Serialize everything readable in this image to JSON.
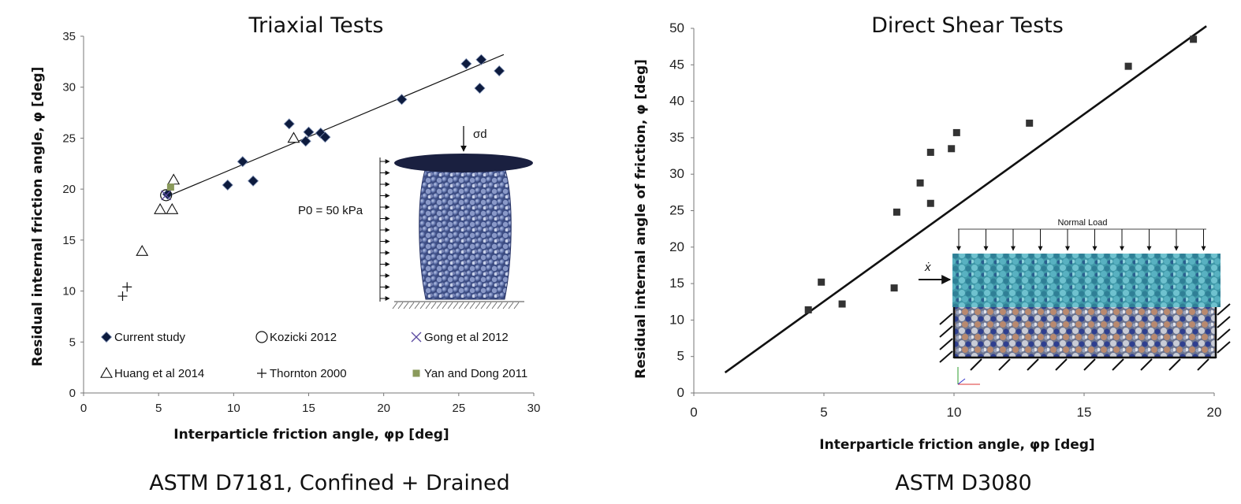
{
  "chart_data": [
    {
      "type": "scatter",
      "title": "Triaxial Tests",
      "caption": "ASTM D7181, Confined + Drained",
      "xlabel": "Interparticle friction angle, φp [deg]",
      "ylabel": "Residual internal  friction angle, φ [deg]",
      "xlim": [
        0,
        30
      ],
      "ylim": [
        0,
        35
      ],
      "xticks": [
        0,
        5,
        10,
        15,
        20,
        25,
        30
      ],
      "yticks": [
        0,
        5,
        10,
        15,
        20,
        25,
        30,
        35
      ],
      "grid": false,
      "legend_placement": "bottom",
      "annotations": {
        "sigma": "σd",
        "pressure": "P0 = 50 kPa"
      },
      "series": [
        {
          "name": "Current study",
          "marker": "diamond",
          "color": "#0d1b3e",
          "x": [
            5.6,
            9.6,
            10.6,
            11.3,
            13.7,
            14.8,
            15.0,
            15.8,
            16.1,
            21.2,
            25.5,
            26.5,
            26.4,
            27.7
          ],
          "y": [
            19.5,
            20.4,
            22.7,
            20.8,
            26.4,
            24.7,
            25.6,
            25.5,
            25.1,
            28.8,
            32.3,
            32.7,
            29.9,
            31.6
          ]
        },
        {
          "name": "Kozicki 2012",
          "marker": "circle",
          "color": "#111111",
          "x": [
            5.5
          ],
          "y": [
            19.4
          ]
        },
        {
          "name": "Gong et al 2012",
          "marker": "x",
          "color": "#5a4aa0",
          "x": [
            5.5
          ],
          "y": [
            19.4
          ]
        },
        {
          "name": "Huang et al 2014",
          "marker": "triangle",
          "color": "#111111",
          "x": [
            14.0,
            6.0,
            5.1,
            5.9,
            3.9
          ],
          "y": [
            25.0,
            20.9,
            18.0,
            18.0,
            13.9
          ]
        },
        {
          "name": "Thornton 2000",
          "marker": "plus",
          "color": "#111111",
          "x": [
            2.6,
            2.9
          ],
          "y": [
            9.5,
            10.4
          ]
        },
        {
          "name": "Yan and Dong 2011",
          "marker": "square",
          "color": "#8a9a5b",
          "x": [
            5.8
          ],
          "y": [
            20.2
          ]
        }
      ],
      "trendline": {
        "x": [
          5.6,
          28.0
        ],
        "y": [
          19.3,
          33.2
        ]
      }
    },
    {
      "type": "scatter",
      "title": "Direct Shear Tests",
      "caption": "ASTM D3080",
      "xlabel": "Interparticle friction angle,  φp [deg]",
      "ylabel": "Residual internal angle of friction, φ [deg]",
      "xlim": [
        0,
        20
      ],
      "ylim": [
        0,
        50
      ],
      "xticks": [
        0,
        5,
        10,
        15,
        20
      ],
      "yticks": [
        0,
        5,
        10,
        15,
        20,
        25,
        30,
        35,
        40,
        45,
        50
      ],
      "grid": false,
      "annotations": {
        "normal_load": "Normal Load",
        "xdot": "ẋ"
      },
      "series": [
        {
          "name": "",
          "marker": "square",
          "color": "#333333",
          "x": [
            4.4,
            4.9,
            5.7,
            7.7,
            7.8,
            8.7,
            9.1,
            9.1,
            9.9,
            10.1,
            12.9,
            16.7,
            19.2
          ],
          "y": [
            11.4,
            15.2,
            12.2,
            14.4,
            24.8,
            28.8,
            26.0,
            33.0,
            33.5,
            35.7,
            37.0,
            44.8,
            48.5
          ]
        }
      ],
      "trendline": {
        "x": [
          1.2,
          19.7
        ],
        "y": [
          2.8,
          50.3
        ]
      }
    }
  ]
}
